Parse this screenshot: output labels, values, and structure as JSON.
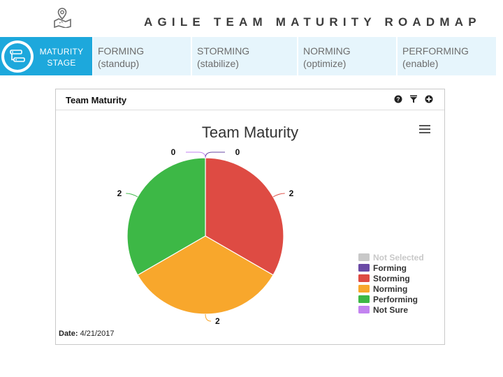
{
  "header": {
    "title": "AGILE TEAM MATURITY ROADMAP",
    "icon": "map-pin-icon"
  },
  "stages": {
    "current_label_line1": "MATURITY",
    "current_label_line2": "STAGE",
    "current_icon": "flow-chart-icon",
    "items": [
      {
        "name": "FORMING",
        "sub": "(standup)"
      },
      {
        "name": "STORMING",
        "sub": "(stabilize)"
      },
      {
        "name": "NORMING",
        "sub": "(optimize)"
      },
      {
        "name": "PERFORMING",
        "sub": "(enable)"
      }
    ]
  },
  "panel": {
    "title": "Team Maturity",
    "icons": [
      "help-icon",
      "filter-icon",
      "add-icon"
    ],
    "date_label": "Date:",
    "date_value": "4/21/2017"
  },
  "chart_data": {
    "type": "pie",
    "title": "Team Maturity",
    "menu_icon": "hamburger-menu-icon",
    "legend_position": "bottom-right",
    "slices": [
      {
        "name": "Not Selected",
        "value": 0,
        "color": "#c8c8c8",
        "label_shown": false
      },
      {
        "name": "Forming",
        "value": 0,
        "color": "#6a4aa5",
        "label_shown": true
      },
      {
        "name": "Storming",
        "value": 2,
        "color": "#de4b43",
        "label_shown": true
      },
      {
        "name": "Norming",
        "value": 2,
        "color": "#f8a72c",
        "label_shown": true
      },
      {
        "name": "Performing",
        "value": 2,
        "color": "#3db846",
        "label_shown": true
      },
      {
        "name": "Not Sure",
        "value": 0,
        "color": "#c383f0",
        "label_shown": true
      }
    ]
  }
}
